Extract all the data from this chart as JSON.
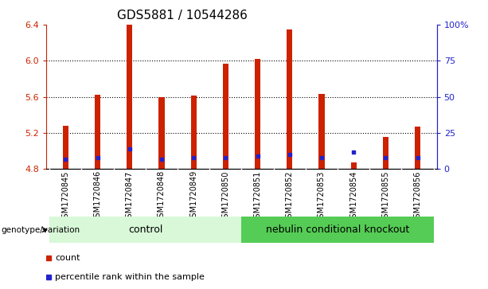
{
  "title": "GDS5881 / 10544286",
  "samples": [
    "GSM1720845",
    "GSM1720846",
    "GSM1720847",
    "GSM1720848",
    "GSM1720849",
    "GSM1720850",
    "GSM1720851",
    "GSM1720852",
    "GSM1720853",
    "GSM1720854",
    "GSM1720855",
    "GSM1720856"
  ],
  "count_values": [
    5.28,
    5.62,
    6.4,
    5.6,
    5.61,
    5.97,
    6.02,
    6.35,
    5.63,
    4.87,
    5.16,
    5.27
  ],
  "percentile_values": [
    7,
    8,
    14,
    7,
    8,
    8,
    9,
    10,
    8,
    12,
    8,
    8
  ],
  "bar_baseline": 4.8,
  "ymin": 4.8,
  "ymax": 6.4,
  "yticks": [
    4.8,
    5.2,
    5.6,
    6.0,
    6.4
  ],
  "right_yticks": [
    0,
    25,
    50,
    75,
    100
  ],
  "right_ytick_labels": [
    "0",
    "25",
    "50",
    "75",
    "100%"
  ],
  "grid_values": [
    5.2,
    5.6,
    6.0
  ],
  "bar_color": "#cc2200",
  "percentile_color": "#2222cc",
  "groups": [
    {
      "label": "control",
      "start": 0,
      "end": 5,
      "color": "#d8f8d8"
    },
    {
      "label": "nebulin conditional knockout",
      "start": 6,
      "end": 11,
      "color": "#55cc55"
    }
  ],
  "xtick_bg_color": "#c8c8c8",
  "group_row_label": "genotype/variation",
  "legend_items": [
    {
      "label": "count",
      "color": "#cc2200"
    },
    {
      "label": "percentile rank within the sample",
      "color": "#2222cc"
    }
  ],
  "title_fontsize": 11,
  "tick_label_fontsize": 7,
  "bar_width": 0.18,
  "left_tick_color": "#cc2200",
  "right_tick_color": "#2222cc"
}
